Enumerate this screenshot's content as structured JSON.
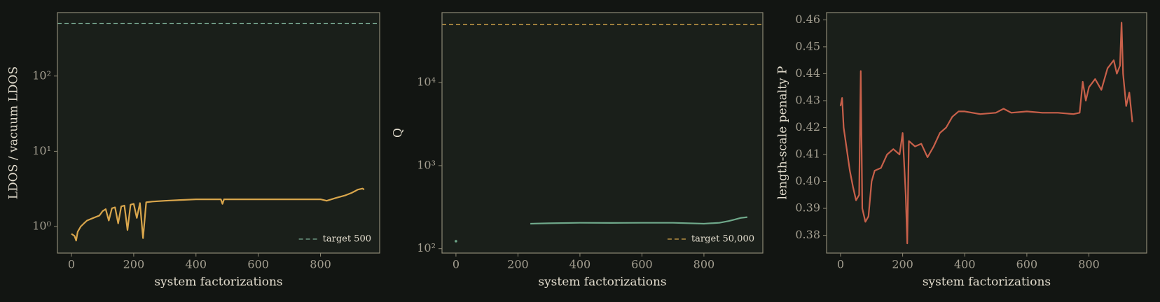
{
  "chart_data": [
    {
      "type": "line",
      "xlabel": "system factorizations",
      "ylabel": "LDOS / vacuum LDOS",
      "yscale": "log",
      "xlim": [
        -45,
        990
      ],
      "ylim": [
        0.444,
        697
      ],
      "xticks": [
        0,
        200,
        400,
        600,
        800
      ],
      "yticks": [
        {
          "value": 1,
          "label": "10⁰"
        },
        {
          "value": 10,
          "label": "10¹"
        },
        {
          "value": 100,
          "label": "10²"
        }
      ],
      "x": [
        0,
        10,
        15,
        20,
        30,
        40,
        50,
        60,
        70,
        80,
        90,
        100,
        110,
        120,
        130,
        140,
        150,
        160,
        170,
        180,
        190,
        200,
        210,
        220,
        230,
        240,
        260,
        300,
        350,
        400,
        480,
        485,
        490,
        600,
        750,
        800,
        820,
        850,
        880,
        900,
        920,
        935,
        940
      ],
      "series": [
        {
          "color": "#d9a64c",
          "values": [
            0.8,
            0.75,
            0.65,
            0.85,
            1.0,
            1.1,
            1.2,
            1.25,
            1.3,
            1.35,
            1.4,
            1.6,
            1.7,
            1.2,
            1.75,
            1.8,
            1.1,
            1.85,
            1.9,
            0.9,
            1.95,
            2.0,
            1.3,
            2.05,
            0.7,
            2.1,
            2.15,
            2.2,
            2.25,
            2.3,
            2.3,
            2.0,
            2.3,
            2.3,
            2.3,
            2.3,
            2.2,
            2.4,
            2.6,
            2.8,
            3.1,
            3.2,
            3.1
          ]
        }
      ],
      "reference_lines": [
        {
          "value": 500,
          "label": "target 500",
          "color": "#7aab93",
          "style": "dashed"
        }
      ],
      "legend": "lower right"
    },
    {
      "type": "line",
      "xlabel": "system factorizations",
      "ylabel": "Q",
      "yscale": "log",
      "xlim": [
        -45,
        990
      ],
      "ylim": [
        88.5,
        69800
      ],
      "xticks": [
        0,
        200,
        400,
        600,
        800
      ],
      "yticks": [
        {
          "value": 100,
          "label": "10²"
        },
        {
          "value": 1000,
          "label": "10³"
        },
        {
          "value": 10000,
          "label": "10⁴"
        }
      ],
      "x": [
        0,
        120,
        240,
        300,
        400,
        500,
        600,
        700,
        800,
        850,
        880,
        900,
        920,
        940
      ],
      "series": [
        {
          "color": "#6fa88a",
          "values": [
            123,
            null,
            200,
            202,
            205,
            204,
            205,
            205,
            200,
            205,
            215,
            225,
            235,
            240
          ]
        }
      ],
      "reference_lines": [
        {
          "value": 50000,
          "label": "target 50,000",
          "color": "#d4a54a",
          "style": "dashed"
        }
      ],
      "legend": "lower right"
    },
    {
      "type": "line",
      "xlabel": "system factorizations",
      "ylabel": "length-scale penalty P",
      "yscale": "linear",
      "xlim": [
        -45,
        986
      ],
      "ylim": [
        0.3734,
        0.4627
      ],
      "xticks": [
        0,
        200,
        400,
        600,
        800
      ],
      "yticks": [
        0.38,
        0.39,
        {
          "value": 0.4,
          "label": "0.40"
        },
        0.41,
        0.42,
        0.43,
        0.44,
        0.45,
        0.46
      ],
      "x": [
        0,
        5,
        10,
        20,
        30,
        40,
        50,
        60,
        65,
        70,
        80,
        90,
        100,
        110,
        130,
        150,
        170,
        190,
        200,
        210,
        215,
        220,
        240,
        260,
        280,
        300,
        320,
        340,
        360,
        380,
        400,
        450,
        500,
        525,
        550,
        600,
        650,
        700,
        750,
        770,
        780,
        790,
        800,
        820,
        840,
        860,
        880,
        890,
        900,
        905,
        910,
        920,
        930,
        940
      ],
      "series": [
        {
          "color": "#c8604a",
          "values": [
            0.428,
            0.431,
            0.42,
            0.412,
            0.404,
            0.398,
            0.393,
            0.395,
            0.441,
            0.39,
            0.385,
            0.387,
            0.4,
            0.404,
            0.405,
            0.41,
            0.412,
            0.41,
            0.418,
            0.395,
            0.377,
            0.415,
            0.413,
            0.414,
            0.409,
            0.413,
            0.418,
            0.42,
            0.424,
            0.426,
            0.426,
            0.425,
            0.4255,
            0.427,
            0.4255,
            0.426,
            0.4255,
            0.4255,
            0.425,
            0.4255,
            0.437,
            0.43,
            0.435,
            0.438,
            0.434,
            0.442,
            0.445,
            0.44,
            0.443,
            0.459,
            0.44,
            0.428,
            0.433,
            0.422
          ]
        }
      ]
    }
  ]
}
